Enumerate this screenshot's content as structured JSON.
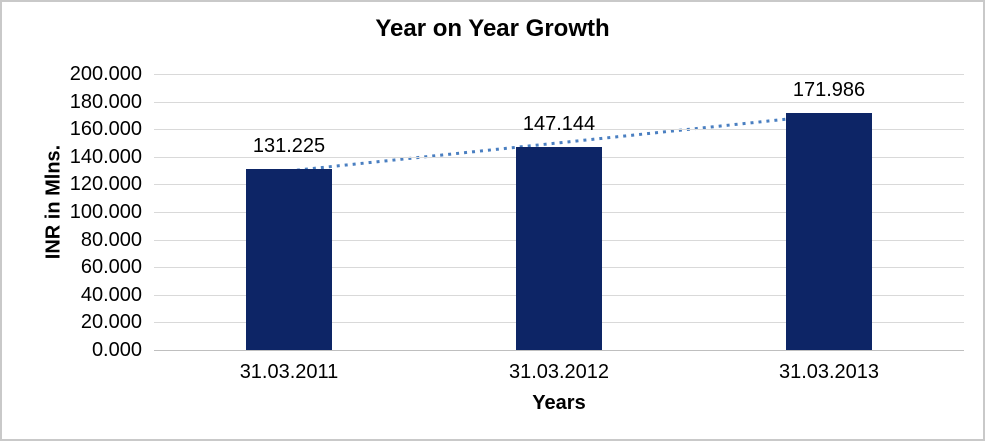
{
  "window": {
    "background": "#ffffff",
    "border_color": "#c9c9c9"
  },
  "chart_data": {
    "type": "bar",
    "title": "Year on Year Growth",
    "categories": [
      "31.03.2011",
      "31.03.2012",
      "31.03.2013"
    ],
    "values": [
      131.225,
      147.144,
      171.986
    ],
    "data_labels": [
      "131.225",
      "147.144",
      "171.986"
    ],
    "xlabel": "Years",
    "ylabel": "INR in Mlns.",
    "ylim": [
      0,
      200
    ],
    "ytick_step": 20,
    "ytick_labels": [
      "200.000",
      "180.000",
      "160.000",
      "140.000",
      "120.000",
      "100.000",
      "80.000",
      "60.000",
      "40.000",
      "20.000",
      "0.000"
    ],
    "grid": "horizontal-only",
    "legend": "none",
    "bar_color": "#0d2566",
    "gridline_color": "#d9d9d9",
    "axis_line_color": "#bfbfbf",
    "text_color": "#000000",
    "trendline": {
      "type": "linear",
      "style": "dotted",
      "color": "#4a7fc1"
    }
  }
}
